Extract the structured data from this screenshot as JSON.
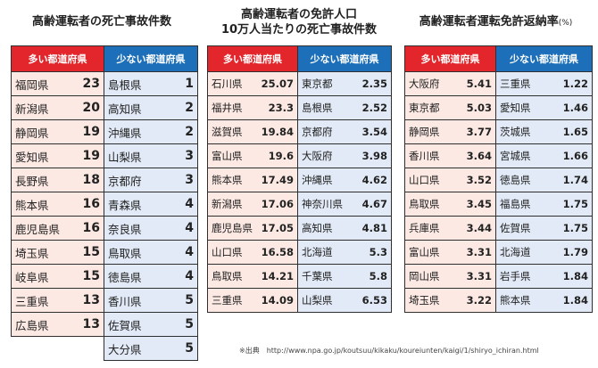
{
  "panel1": {
    "title": "高齢運転者の死亡事故件数",
    "left_header": "多い都道府県",
    "right_header": "少ない都道府県",
    "left_rows": [
      {
        "pref": "福岡県",
        "val": "23"
      },
      {
        "pref": "新潟県",
        "val": "20"
      },
      {
        "pref": "静岡県",
        "val": "19"
      },
      {
        "pref": "愛知県",
        "val": "19"
      },
      {
        "pref": "長野県",
        "val": "18"
      },
      {
        "pref": "熊本県",
        "val": "16"
      },
      {
        "pref": "鹿児島県",
        "val": "16"
      },
      {
        "pref": "埼玉県",
        "val": "15"
      },
      {
        "pref": "岐阜県",
        "val": "15"
      },
      {
        "pref": "三重県",
        "val": "13"
      },
      {
        "pref": "広島県",
        "val": "13"
      }
    ],
    "right_rows": [
      {
        "pref": "島根県",
        "val": "1"
      },
      {
        "pref": "高知県",
        "val": "2"
      },
      {
        "pref": "沖縄県",
        "val": "2"
      },
      {
        "pref": "山梨県",
        "val": "3"
      },
      {
        "pref": "京都府",
        "val": "3"
      },
      {
        "pref": "青森県",
        "val": "4"
      },
      {
        "pref": "奈良県",
        "val": "4"
      },
      {
        "pref": "鳥取県",
        "val": "4"
      },
      {
        "pref": "徳島県",
        "val": "4"
      },
      {
        "pref": "香川県",
        "val": "5"
      },
      {
        "pref": "佐賀県",
        "val": "5"
      },
      {
        "pref": "大分県",
        "val": "5"
      }
    ]
  },
  "panel2": {
    "title_line1": "高齢運転者の免許人口",
    "title_line2": "10万人当たりの死亡事故件数",
    "left_header": "多い都道府県",
    "right_header": "少ない都道府県",
    "left_rows": [
      {
        "pref": "石川県",
        "val": "25.07"
      },
      {
        "pref": "福井県",
        "val": "23.3"
      },
      {
        "pref": "滋賀県",
        "val": "19.84"
      },
      {
        "pref": "富山県",
        "val": "19.6"
      },
      {
        "pref": "熊本県",
        "val": "17.49"
      },
      {
        "pref": "新潟県",
        "val": "17.06"
      },
      {
        "pref": "鹿児島県",
        "val": "17.05"
      },
      {
        "pref": "山口県",
        "val": "16.58"
      },
      {
        "pref": "鳥取県",
        "val": "14.21"
      },
      {
        "pref": "三重県",
        "val": "14.09"
      }
    ],
    "right_rows": [
      {
        "pref": "東京都",
        "val": "2.35"
      },
      {
        "pref": "島根県",
        "val": "2.52"
      },
      {
        "pref": "京都府",
        "val": "3.54"
      },
      {
        "pref": "大阪府",
        "val": "3.98"
      },
      {
        "pref": "沖縄県",
        "val": "4.62"
      },
      {
        "pref": "神奈川県",
        "val": "4.67"
      },
      {
        "pref": "高知県",
        "val": "4.81"
      },
      {
        "pref": "北海道",
        "val": "5.3"
      },
      {
        "pref": "千葉県",
        "val": "5.8"
      },
      {
        "pref": "山梨県",
        "val": "6.53"
      }
    ]
  },
  "panel3": {
    "title": "高齢運転者運転免許返納率",
    "unit": "(%)",
    "left_header": "多い都道府県",
    "right_header": "少ない都道府県",
    "left_rows": [
      {
        "pref": "大阪府",
        "val": "5.41"
      },
      {
        "pref": "東京都",
        "val": "5.03"
      },
      {
        "pref": "静岡県",
        "val": "3.77"
      },
      {
        "pref": "香川県",
        "val": "3.64"
      },
      {
        "pref": "山口県",
        "val": "3.52"
      },
      {
        "pref": "鳥取県",
        "val": "3.45"
      },
      {
        "pref": "兵庫県",
        "val": "3.44"
      },
      {
        "pref": "富山県",
        "val": "3.31"
      },
      {
        "pref": "岡山県",
        "val": "3.31"
      },
      {
        "pref": "埼玉県",
        "val": "3.22"
      }
    ],
    "right_rows": [
      {
        "pref": "三重県",
        "val": "1.22"
      },
      {
        "pref": "愛知県",
        "val": "1.46"
      },
      {
        "pref": "茨城県",
        "val": "1.65"
      },
      {
        "pref": "宮城県",
        "val": "1.66"
      },
      {
        "pref": "徳島県",
        "val": "1.74"
      },
      {
        "pref": "福島県",
        "val": "1.75"
      },
      {
        "pref": "佐賀県",
        "val": "1.75"
      },
      {
        "pref": "北海道",
        "val": "1.79"
      },
      {
        "pref": "岩手県",
        "val": "1.84"
      },
      {
        "pref": "熊本県",
        "val": "1.84"
      }
    ]
  },
  "source": "※出典　http://www.npa.go.jp/koutsuu/kikaku/koureiunten/kaigi/1/shiryo_ichiran.html"
}
